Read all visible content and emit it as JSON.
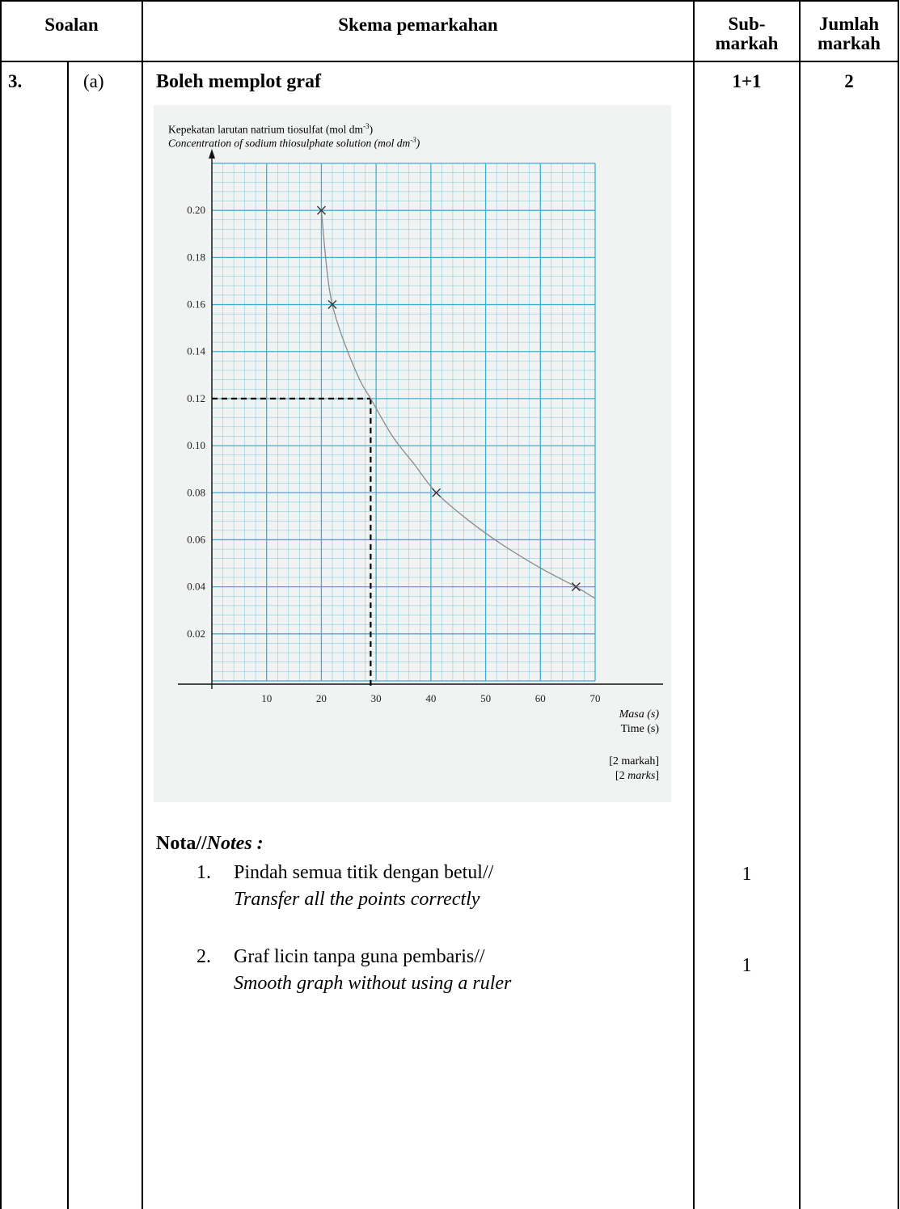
{
  "table": {
    "headers": {
      "soalan": "Soalan",
      "skema": "Skema pemarkahan",
      "sub_line1": "Sub-",
      "sub_line2": "markah",
      "jumlah_line1": "Jumlah",
      "jumlah_line2": "markah"
    },
    "row": {
      "question_no": "3.",
      "part": "(a)",
      "heading": "Boleh memplot graf",
      "sub_mark": "1+1",
      "total_mark": "2"
    }
  },
  "graph": {
    "ylabel_ms": "Kepekatan larutan natrium tiosulfat (mol dm",
    "ylabel_ms_sup": "-3",
    "ylabel_en": "Concentration of sodium thiosulphate solution (mol dm",
    "ylabel_en_sup": "-3",
    "xlabel_ms": "Masa (s)",
    "xlabel_en": "Time (s)",
    "marks_ms": "[2 markah]",
    "marks_en_prefix": "[2 ",
    "marks_en_word": "marks",
    "marks_en_suffix": "]",
    "grid_color": "#3bb0d6"
  },
  "chart_data": {
    "type": "scatter",
    "xlabel": "Masa (s) / Time (s)",
    "ylabel": "Kepekatan larutan natrium tiosulfat (mol dm-3) / Concentration of sodium thiosulphate solution (mol dm-3)",
    "xlim": [
      0,
      70
    ],
    "ylim": [
      0,
      0.2
    ],
    "x_ticks": [
      "10",
      "20",
      "30",
      "40",
      "50",
      "60",
      "70"
    ],
    "y_ticks": [
      "0.02",
      "0.04",
      "0.06",
      "0.08",
      "0.10",
      "0.12",
      "0.14",
      "0.16",
      "0.18",
      "0.20"
    ],
    "points": [
      {
        "x": 20,
        "y": 0.2
      },
      {
        "x": 22,
        "y": 0.16
      },
      {
        "x": 41,
        "y": 0.08
      },
      {
        "x": 66.5,
        "y": 0.04
      }
    ],
    "curve": [
      {
        "x": 20,
        "y": 0.2
      },
      {
        "x": 21,
        "y": 0.175
      },
      {
        "x": 22,
        "y": 0.16
      },
      {
        "x": 24,
        "y": 0.145
      },
      {
        "x": 27,
        "y": 0.128
      },
      {
        "x": 29,
        "y": 0.12
      },
      {
        "x": 33,
        "y": 0.104
      },
      {
        "x": 37,
        "y": 0.092
      },
      {
        "x": 41,
        "y": 0.08
      },
      {
        "x": 47,
        "y": 0.068
      },
      {
        "x": 53,
        "y": 0.058
      },
      {
        "x": 60,
        "y": 0.048
      },
      {
        "x": 66.5,
        "y": 0.04
      },
      {
        "x": 70,
        "y": 0.035
      }
    ],
    "guide": {
      "x": 29,
      "y": 0.12
    },
    "grid": true
  },
  "notes": {
    "title_bold": "Nota//",
    "title_italic": "Notes :",
    "items": [
      {
        "num": "1.",
        "ms": "Pindah semua titik dengan betul//",
        "en": "Transfer all the points correctly",
        "mark": "1"
      },
      {
        "num": "2.",
        "ms": "Graf licin tanpa guna pembaris//",
        "en": "Smooth graph without using a ruler",
        "mark": "1"
      }
    ]
  }
}
